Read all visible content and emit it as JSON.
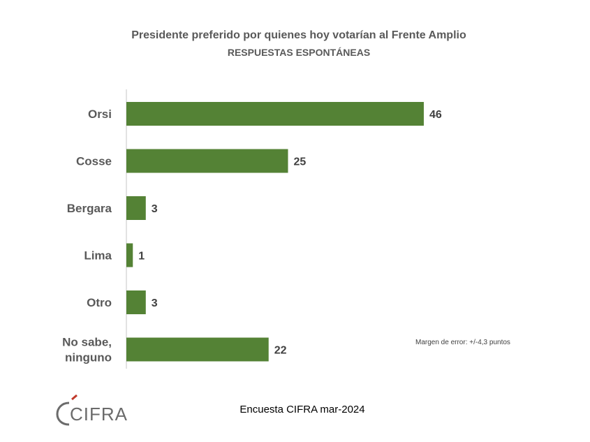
{
  "chart_data": {
    "type": "bar",
    "orientation": "horizontal",
    "title": "Presidente preferido por quienes hoy votarían al Frente Amplio",
    "subtitle": "RESPUESTAS ESPONTÁNEAS",
    "categories": [
      "Orsi",
      "Cosse",
      "Bergara",
      "Lima",
      "Otro",
      "No sabe, ninguno"
    ],
    "values": [
      46,
      25,
      3,
      1,
      3,
      22
    ],
    "data_labels": [
      "46",
      "25",
      "3",
      "1",
      "3",
      "22"
    ],
    "xlim": [
      0,
      50
    ],
    "grid": false,
    "legend": "none",
    "bar_color": "#548235",
    "axis_color": "#d9d9d9"
  },
  "annotations": {
    "margin_error": "Margen de error: +/-4,3 puntos",
    "source": "Encuesta CIFRA mar-2024"
  },
  "logo": {
    "text": "CIFRA",
    "name": "cifra-logo"
  }
}
